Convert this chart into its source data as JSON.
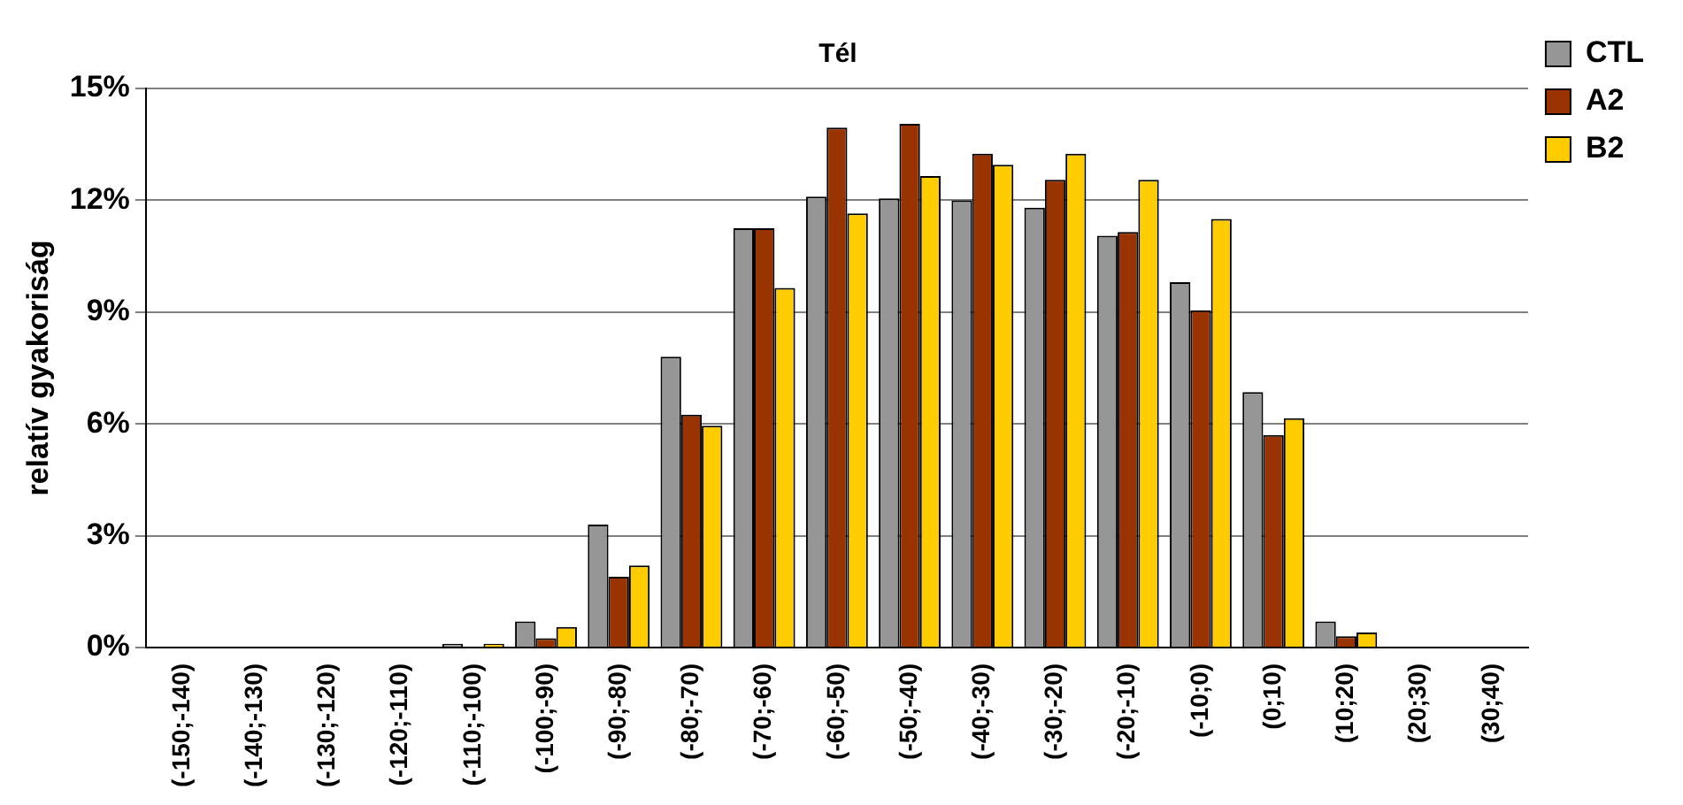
{
  "chart_data": {
    "type": "bar",
    "title": "Tél",
    "ylabel": "relatív gyakoriság",
    "categories": [
      "(-150;-140)",
      "(-140;-130)",
      "(-130;-120)",
      "(-120;-110)",
      "(-110;-100)",
      "(-100;-90)",
      "(-90;-80)",
      "(-80;-70)",
      "(-70;-60)",
      "(-60;-50)",
      "(-50;-40)",
      "(-40;-30)",
      "(-30;-20)",
      "(-20;-10)",
      "(-10;0)",
      "(0;10)",
      "(10;20)",
      "(20;30)",
      "(30;40)"
    ],
    "series": [
      {
        "name": "CTL",
        "color": "#969696",
        "values": [
          0,
          0,
          0,
          0,
          0.1,
          0.7,
          3.3,
          7.8,
          11.25,
          12.1,
          12.05,
          12.0,
          11.8,
          11.05,
          9.8,
          6.85,
          0.7,
          0,
          0
        ]
      },
      {
        "name": "A2",
        "color": "#993300",
        "values": [
          0,
          0,
          0,
          0,
          0,
          0.25,
          1.9,
          6.25,
          11.25,
          13.95,
          14.05,
          13.25,
          12.55,
          11.15,
          9.05,
          5.7,
          0.3,
          0,
          0
        ]
      },
      {
        "name": "B2",
        "color": "#ffcc00",
        "values": [
          0,
          0,
          0,
          0,
          0.1,
          0.55,
          2.2,
          5.95,
          9.65,
          11.65,
          12.65,
          12.95,
          13.25,
          12.55,
          11.5,
          6.15,
          0.4,
          0,
          0
        ]
      }
    ],
    "ylim": [
      0,
      15
    ],
    "yticks": [
      {
        "value": 0,
        "label": "0%"
      },
      {
        "value": 3,
        "label": "3%"
      },
      {
        "value": 6,
        "label": "6%"
      },
      {
        "value": 9,
        "label": "9%"
      },
      {
        "value": 12,
        "label": "12%"
      },
      {
        "value": 15,
        "label": "15%"
      }
    ],
    "grid": "y",
    "legend": "top right"
  }
}
